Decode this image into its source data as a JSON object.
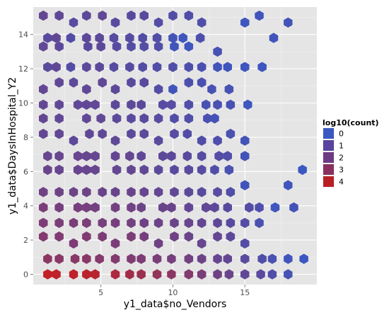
{
  "chart_data": {
    "type": "hexbin",
    "xlabel": "y1_data$no_Vendors",
    "ylabel": "y1_data$DaysInHospital_Y2",
    "xlim": [
      0.3,
      20.0
    ],
    "ylim": [
      -0.6,
      15.6
    ],
    "x_ticks": [
      5,
      10,
      15
    ],
    "y_ticks": [
      0,
      2,
      4,
      6,
      8,
      10,
      12,
      14
    ],
    "grid": true,
    "legend": {
      "title": "log10(count)",
      "placement": "right",
      "entries": [
        {
          "label": "0",
          "color": "#3B57C2"
        },
        {
          "label": "1",
          "color": "#59439E"
        },
        {
          "label": "2",
          "color": "#6E3A84"
        },
        {
          "label": "3",
          "color": "#883060"
        },
        {
          "label": "4",
          "color": "#B81F25"
        }
      ]
    },
    "color_scale": {
      "low": "#3B57C2",
      "high": "#C81E1E",
      "min": 0,
      "max": 4.5
    },
    "bins": [
      {
        "x": 1.0,
        "y": 15.1,
        "v": 1.3
      },
      {
        "x": 2.1,
        "y": 15.1,
        "v": 1.2
      },
      {
        "x": 3.1,
        "y": 14.7,
        "v": 0.9
      },
      {
        "x": 4.0,
        "y": 15.1,
        "v": 1.1
      },
      {
        "x": 5.1,
        "y": 15.1,
        "v": 1.2
      },
      {
        "x": 6.0,
        "y": 14.7,
        "v": 0.9
      },
      {
        "x": 7.1,
        "y": 15.1,
        "v": 1.0
      },
      {
        "x": 8.0,
        "y": 15.1,
        "v": 1.0
      },
      {
        "x": 9.0,
        "y": 14.7,
        "v": 0.8
      },
      {
        "x": 10.0,
        "y": 15.1,
        "v": 0.8
      },
      {
        "x": 11.1,
        "y": 15.1,
        "v": 0.7
      },
      {
        "x": 12.0,
        "y": 14.7,
        "v": 0.7
      },
      {
        "x": 15.0,
        "y": 14.7,
        "v": 0.1
      },
      {
        "x": 16.0,
        "y": 15.1,
        "v": 0.2
      },
      {
        "x": 18.0,
        "y": 14.7,
        "v": 0.3
      },
      {
        "x": 1.3,
        "y": 13.8,
        "v": 1.0
      },
      {
        "x": 1.9,
        "y": 13.8,
        "v": 1.2
      },
      {
        "x": 2.9,
        "y": 13.8,
        "v": 0.8
      },
      {
        "x": 4.0,
        "y": 13.8,
        "v": 1.1
      },
      {
        "x": 4.9,
        "y": 13.8,
        "v": 1.1
      },
      {
        "x": 5.9,
        "y": 13.8,
        "v": 0.9
      },
      {
        "x": 7.0,
        "y": 13.8,
        "v": 0.9
      },
      {
        "x": 7.9,
        "y": 13.8,
        "v": 0.8
      },
      {
        "x": 8.9,
        "y": 13.8,
        "v": 0.7
      },
      {
        "x": 10.0,
        "y": 13.8,
        "v": 0.3
      },
      {
        "x": 10.7,
        "y": 13.8,
        "v": 0.1
      },
      {
        "x": 11.9,
        "y": 13.8,
        "v": 0.6
      },
      {
        "x": 17.0,
        "y": 13.8,
        "v": 0.2
      },
      {
        "x": 1.0,
        "y": 13.3,
        "v": 1.2
      },
      {
        "x": 2.1,
        "y": 13.3,
        "v": 1.1
      },
      {
        "x": 4.1,
        "y": 13.3,
        "v": 1.0
      },
      {
        "x": 5.0,
        "y": 13.3,
        "v": 1.1
      },
      {
        "x": 6.1,
        "y": 13.3,
        "v": 0.9
      },
      {
        "x": 7.1,
        "y": 13.3,
        "v": 0.8
      },
      {
        "x": 8.0,
        "y": 13.3,
        "v": 0.8
      },
      {
        "x": 9.0,
        "y": 13.3,
        "v": 0.7
      },
      {
        "x": 10.1,
        "y": 13.3,
        "v": 0.2
      },
      {
        "x": 11.1,
        "y": 13.3,
        "v": 0.1
      },
      {
        "x": 13.1,
        "y": 13.0,
        "v": 0.4
      },
      {
        "x": 1.3,
        "y": 12.1,
        "v": 1.0
      },
      {
        "x": 1.9,
        "y": 12.1,
        "v": 1.2
      },
      {
        "x": 2.9,
        "y": 12.1,
        "v": 0.8
      },
      {
        "x": 4.0,
        "y": 12.1,
        "v": 1.1
      },
      {
        "x": 4.9,
        "y": 12.1,
        "v": 1.1
      },
      {
        "x": 5.9,
        "y": 12.1,
        "v": 0.9
      },
      {
        "x": 7.0,
        "y": 12.1,
        "v": 0.9
      },
      {
        "x": 7.9,
        "y": 12.1,
        "v": 0.8
      },
      {
        "x": 8.9,
        "y": 12.1,
        "v": 0.7
      },
      {
        "x": 10.0,
        "y": 12.1,
        "v": 0.7
      },
      {
        "x": 11.1,
        "y": 12.1,
        "v": 0.6
      },
      {
        "x": 12.0,
        "y": 12.1,
        "v": 0.5
      },
      {
        "x": 13.1,
        "y": 12.1,
        "v": 0.2
      },
      {
        "x": 13.8,
        "y": 12.1,
        "v": 0.1
      },
      {
        "x": 15.0,
        "y": 12.1,
        "v": 0.1
      },
      {
        "x": 16.2,
        "y": 12.1,
        "v": 0.1
      },
      {
        "x": 1.0,
        "y": 10.8,
        "v": 1.3
      },
      {
        "x": 2.1,
        "y": 11.2,
        "v": 1.2
      },
      {
        "x": 3.1,
        "y": 11.2,
        "v": 1.1
      },
      {
        "x": 4.0,
        "y": 10.8,
        "v": 1.2
      },
      {
        "x": 5.1,
        "y": 11.2,
        "v": 1.2
      },
      {
        "x": 6.0,
        "y": 10.8,
        "v": 1.1
      },
      {
        "x": 7.1,
        "y": 11.2,
        "v": 1.0
      },
      {
        "x": 8.0,
        "y": 11.2,
        "v": 1.0
      },
      {
        "x": 9.0,
        "y": 10.8,
        "v": 0.8
      },
      {
        "x": 10.0,
        "y": 10.8,
        "v": 0.2
      },
      {
        "x": 11.1,
        "y": 11.2,
        "v": 0.6
      },
      {
        "x": 12.0,
        "y": 11.2,
        "v": 0.5
      },
      {
        "x": 12.7,
        "y": 10.8,
        "v": 0.4
      },
      {
        "x": 13.9,
        "y": 10.8,
        "v": 0.4
      },
      {
        "x": 1.0,
        "y": 9.9,
        "v": 1.3
      },
      {
        "x": 2.1,
        "y": 9.9,
        "v": 1.2
      },
      {
        "x": 3.4,
        "y": 9.9,
        "v": 1.2
      },
      {
        "x": 4.0,
        "y": 9.9,
        "v": 1.2
      },
      {
        "x": 4.6,
        "y": 9.9,
        "v": 1.2
      },
      {
        "x": 6.0,
        "y": 9.9,
        "v": 1.1
      },
      {
        "x": 7.1,
        "y": 9.9,
        "v": 1.1
      },
      {
        "x": 7.8,
        "y": 9.9,
        "v": 1.1
      },
      {
        "x": 9.3,
        "y": 9.9,
        "v": 0.9
      },
      {
        "x": 9.9,
        "y": 9.9,
        "v": 0.9
      },
      {
        "x": 11.1,
        "y": 9.9,
        "v": 0.7
      },
      {
        "x": 12.3,
        "y": 9.9,
        "v": 0.4
      },
      {
        "x": 13.1,
        "y": 9.9,
        "v": 0.5
      },
      {
        "x": 14.0,
        "y": 9.9,
        "v": 0.4
      },
      {
        "x": 15.2,
        "y": 9.9,
        "v": 0.1
      },
      {
        "x": 1.0,
        "y": 9.1,
        "v": 1.3
      },
      {
        "x": 2.1,
        "y": 9.1,
        "v": 1.2
      },
      {
        "x": 4.0,
        "y": 9.1,
        "v": 1.2
      },
      {
        "x": 5.0,
        "y": 9.1,
        "v": 1.2
      },
      {
        "x": 6.1,
        "y": 9.1,
        "v": 1.1
      },
      {
        "x": 7.1,
        "y": 9.1,
        "v": 1.0
      },
      {
        "x": 8.0,
        "y": 9.1,
        "v": 1.0
      },
      {
        "x": 9.0,
        "y": 9.1,
        "v": 0.9
      },
      {
        "x": 10.1,
        "y": 9.1,
        "v": 0.7
      },
      {
        "x": 11.1,
        "y": 9.1,
        "v": 0.7
      },
      {
        "x": 12.4,
        "y": 9.1,
        "v": 0.5
      },
      {
        "x": 12.9,
        "y": 9.1,
        "v": 0.3
      },
      {
        "x": 1.0,
        "y": 8.2,
        "v": 1.3
      },
      {
        "x": 2.1,
        "y": 8.2,
        "v": 1.3
      },
      {
        "x": 3.1,
        "y": 7.8,
        "v": 1.1
      },
      {
        "x": 4.2,
        "y": 8.2,
        "v": 1.2
      },
      {
        "x": 5.1,
        "y": 8.2,
        "v": 1.2
      },
      {
        "x": 6.0,
        "y": 7.8,
        "v": 1.2
      },
      {
        "x": 7.1,
        "y": 8.2,
        "v": 1.1
      },
      {
        "x": 8.0,
        "y": 8.2,
        "v": 1.1
      },
      {
        "x": 9.0,
        "y": 7.8,
        "v": 1.0
      },
      {
        "x": 10.1,
        "y": 8.2,
        "v": 0.9
      },
      {
        "x": 11.0,
        "y": 8.2,
        "v": 0.8
      },
      {
        "x": 12.0,
        "y": 7.8,
        "v": 0.7
      },
      {
        "x": 13.1,
        "y": 7.8,
        "v": 0.6
      },
      {
        "x": 14.0,
        "y": 8.2,
        "v": 0.5
      },
      {
        "x": 15.0,
        "y": 7.8,
        "v": 0.3
      },
      {
        "x": 1.3,
        "y": 6.9,
        "v": 1.4
      },
      {
        "x": 2.1,
        "y": 6.9,
        "v": 1.4
      },
      {
        "x": 3.4,
        "y": 6.9,
        "v": 1.4
      },
      {
        "x": 4.0,
        "y": 6.9,
        "v": 1.4
      },
      {
        "x": 4.6,
        "y": 6.9,
        "v": 1.4
      },
      {
        "x": 6.0,
        "y": 6.9,
        "v": 1.3
      },
      {
        "x": 7.0,
        "y": 6.9,
        "v": 1.3
      },
      {
        "x": 7.8,
        "y": 6.9,
        "v": 1.2
      },
      {
        "x": 9.3,
        "y": 6.9,
        "v": 1.1
      },
      {
        "x": 9.9,
        "y": 6.9,
        "v": 1.1
      },
      {
        "x": 11.0,
        "y": 6.9,
        "v": 1.0
      },
      {
        "x": 12.0,
        "y": 6.9,
        "v": 0.9
      },
      {
        "x": 13.2,
        "y": 6.9,
        "v": 0.8
      },
      {
        "x": 13.8,
        "y": 6.9,
        "v": 0.7
      },
      {
        "x": 15.0,
        "y": 6.9,
        "v": 0.3
      },
      {
        "x": 1.3,
        "y": 6.1,
        "v": 1.5
      },
      {
        "x": 2.1,
        "y": 6.1,
        "v": 1.4
      },
      {
        "x": 3.4,
        "y": 6.1,
        "v": 1.4
      },
      {
        "x": 4.0,
        "y": 6.1,
        "v": 1.4
      },
      {
        "x": 4.6,
        "y": 6.1,
        "v": 1.4
      },
      {
        "x": 6.1,
        "y": 6.1,
        "v": 1.3
      },
      {
        "x": 7.1,
        "y": 6.1,
        "v": 1.3
      },
      {
        "x": 8.0,
        "y": 6.1,
        "v": 1.2
      },
      {
        "x": 9.0,
        "y": 6.1,
        "v": 1.1
      },
      {
        "x": 10.1,
        "y": 6.1,
        "v": 1.0
      },
      {
        "x": 11.1,
        "y": 6.1,
        "v": 1.0
      },
      {
        "x": 12.0,
        "y": 6.1,
        "v": 0.9
      },
      {
        "x": 12.9,
        "y": 6.1,
        "v": 0.7
      },
      {
        "x": 13.9,
        "y": 6.1,
        "v": 0.5
      },
      {
        "x": 19.0,
        "y": 6.1,
        "v": 0.0
      },
      {
        "x": 1.0,
        "y": 4.8,
        "v": 1.7
      },
      {
        "x": 2.1,
        "y": 4.8,
        "v": 1.6
      },
      {
        "x": 3.1,
        "y": 4.8,
        "v": 1.6
      },
      {
        "x": 4.0,
        "y": 4.8,
        "v": 1.6
      },
      {
        "x": 5.1,
        "y": 4.8,
        "v": 1.5
      },
      {
        "x": 6.0,
        "y": 4.8,
        "v": 1.5
      },
      {
        "x": 7.1,
        "y": 4.8,
        "v": 1.5
      },
      {
        "x": 8.0,
        "y": 4.8,
        "v": 1.4
      },
      {
        "x": 9.0,
        "y": 4.8,
        "v": 1.3
      },
      {
        "x": 10.1,
        "y": 4.8,
        "v": 1.2
      },
      {
        "x": 11.1,
        "y": 4.8,
        "v": 1.1
      },
      {
        "x": 12.0,
        "y": 4.8,
        "v": 1.0
      },
      {
        "x": 13.1,
        "y": 4.8,
        "v": 0.9
      },
      {
        "x": 14.0,
        "y": 4.8,
        "v": 0.7
      },
      {
        "x": 15.0,
        "y": 5.2,
        "v": 0.2
      },
      {
        "x": 18.0,
        "y": 5.2,
        "v": 0.2
      },
      {
        "x": 1.0,
        "y": 3.9,
        "v": 2.0
      },
      {
        "x": 2.1,
        "y": 3.9,
        "v": 1.9
      },
      {
        "x": 3.4,
        "y": 3.9,
        "v": 1.9
      },
      {
        "x": 4.0,
        "y": 3.9,
        "v": 1.9
      },
      {
        "x": 4.6,
        "y": 3.9,
        "v": 1.8
      },
      {
        "x": 6.0,
        "y": 3.9,
        "v": 1.8
      },
      {
        "x": 7.1,
        "y": 3.9,
        "v": 1.7
      },
      {
        "x": 7.8,
        "y": 3.9,
        "v": 1.6
      },
      {
        "x": 9.3,
        "y": 3.9,
        "v": 1.5
      },
      {
        "x": 9.9,
        "y": 3.9,
        "v": 1.5
      },
      {
        "x": 11.1,
        "y": 3.9,
        "v": 1.3
      },
      {
        "x": 12.3,
        "y": 3.9,
        "v": 1.2
      },
      {
        "x": 12.9,
        "y": 3.9,
        "v": 1.1
      },
      {
        "x": 13.8,
        "y": 3.9,
        "v": 1.0
      },
      {
        "x": 15.3,
        "y": 3.9,
        "v": 0.8
      },
      {
        "x": 16.0,
        "y": 3.9,
        "v": 0.6
      },
      {
        "x": 17.1,
        "y": 3.9,
        "v": 0.1
      },
      {
        "x": 18.4,
        "y": 3.9,
        "v": 0.3
      },
      {
        "x": 1.0,
        "y": 3.0,
        "v": 2.1
      },
      {
        "x": 2.1,
        "y": 3.0,
        "v": 2.0
      },
      {
        "x": 3.1,
        "y": 3.0,
        "v": 2.0
      },
      {
        "x": 4.0,
        "y": 3.0,
        "v": 2.0
      },
      {
        "x": 5.1,
        "y": 3.0,
        "v": 1.9
      },
      {
        "x": 6.0,
        "y": 3.0,
        "v": 1.9
      },
      {
        "x": 7.1,
        "y": 3.0,
        "v": 1.8
      },
      {
        "x": 8.0,
        "y": 3.0,
        "v": 1.7
      },
      {
        "x": 9.0,
        "y": 3.0,
        "v": 1.6
      },
      {
        "x": 10.1,
        "y": 3.0,
        "v": 1.5
      },
      {
        "x": 11.1,
        "y": 3.0,
        "v": 1.4
      },
      {
        "x": 12.0,
        "y": 3.0,
        "v": 1.3
      },
      {
        "x": 13.1,
        "y": 3.0,
        "v": 1.2
      },
      {
        "x": 14.0,
        "y": 3.0,
        "v": 1.0
      },
      {
        "x": 15.0,
        "y": 3.0,
        "v": 0.8
      },
      {
        "x": 16.0,
        "y": 3.0,
        "v": 0.5
      },
      {
        "x": 1.0,
        "y": 2.2,
        "v": 2.3
      },
      {
        "x": 2.1,
        "y": 2.2,
        "v": 2.2
      },
      {
        "x": 3.1,
        "y": 1.8,
        "v": 2.1
      },
      {
        "x": 4.0,
        "y": 2.2,
        "v": 2.2
      },
      {
        "x": 5.1,
        "y": 2.2,
        "v": 2.1
      },
      {
        "x": 6.0,
        "y": 1.8,
        "v": 2.0
      },
      {
        "x": 7.1,
        "y": 2.2,
        "v": 2.0
      },
      {
        "x": 8.0,
        "y": 2.2,
        "v": 1.9
      },
      {
        "x": 9.0,
        "y": 1.8,
        "v": 1.7
      },
      {
        "x": 10.1,
        "y": 2.2,
        "v": 1.7
      },
      {
        "x": 11.1,
        "y": 2.2,
        "v": 1.5
      },
      {
        "x": 12.0,
        "y": 1.8,
        "v": 1.4
      },
      {
        "x": 13.1,
        "y": 2.2,
        "v": 1.3
      },
      {
        "x": 14.0,
        "y": 2.2,
        "v": 1.1
      },
      {
        "x": 15.0,
        "y": 1.8,
        "v": 0.8
      },
      {
        "x": 1.3,
        "y": 0.9,
        "v": 2.6
      },
      {
        "x": 2.1,
        "y": 0.9,
        "v": 2.5
      },
      {
        "x": 3.2,
        "y": 0.9,
        "v": 2.5
      },
      {
        "x": 4.0,
        "y": 0.9,
        "v": 2.5
      },
      {
        "x": 4.9,
        "y": 0.9,
        "v": 2.4
      },
      {
        "x": 6.0,
        "y": 0.9,
        "v": 2.3
      },
      {
        "x": 7.1,
        "y": 0.9,
        "v": 2.2
      },
      {
        "x": 7.8,
        "y": 0.9,
        "v": 2.1
      },
      {
        "x": 8.9,
        "y": 0.9,
        "v": 2.0
      },
      {
        "x": 9.9,
        "y": 0.9,
        "v": 1.9
      },
      {
        "x": 11.1,
        "y": 0.9,
        "v": 1.8
      },
      {
        "x": 12.0,
        "y": 0.9,
        "v": 1.6
      },
      {
        "x": 13.1,
        "y": 0.9,
        "v": 1.4
      },
      {
        "x": 13.8,
        "y": 0.9,
        "v": 1.3
      },
      {
        "x": 15.0,
        "y": 0.9,
        "v": 1.0
      },
      {
        "x": 16.2,
        "y": 0.9,
        "v": 0.7
      },
      {
        "x": 16.9,
        "y": 0.9,
        "v": 0.5
      },
      {
        "x": 18.0,
        "y": 0.9,
        "v": 0.2
      },
      {
        "x": 19.1,
        "y": 0.9,
        "v": 0.0
      },
      {
        "x": 1.3,
        "y": 0.0,
        "v": 4.3
      },
      {
        "x": 1.9,
        "y": 0.0,
        "v": 4.2
      },
      {
        "x": 3.1,
        "y": 0.0,
        "v": 4.2
      },
      {
        "x": 4.0,
        "y": 0.0,
        "v": 4.1
      },
      {
        "x": 4.6,
        "y": 0.0,
        "v": 4.0
      },
      {
        "x": 6.0,
        "y": 0.0,
        "v": 3.6
      },
      {
        "x": 7.0,
        "y": 0.0,
        "v": 3.3
      },
      {
        "x": 7.8,
        "y": 0.0,
        "v": 3.1
      },
      {
        "x": 8.9,
        "y": 0.0,
        "v": 2.8
      },
      {
        "x": 9.9,
        "y": 0.0,
        "v": 2.6
      },
      {
        "x": 11.1,
        "y": 0.0,
        "v": 2.3
      },
      {
        "x": 12.0,
        "y": 0.0,
        "v": 2.0
      },
      {
        "x": 13.1,
        "y": 0.0,
        "v": 1.7
      },
      {
        "x": 13.9,
        "y": 0.0,
        "v": 1.5
      },
      {
        "x": 15.0,
        "y": 0.0,
        "v": 1.2
      },
      {
        "x": 16.1,
        "y": 0.0,
        "v": 1.0
      },
      {
        "x": 16.9,
        "y": 0.0,
        "v": 0.7
      },
      {
        "x": 18.0,
        "y": 0.0,
        "v": 0.4
      }
    ]
  }
}
